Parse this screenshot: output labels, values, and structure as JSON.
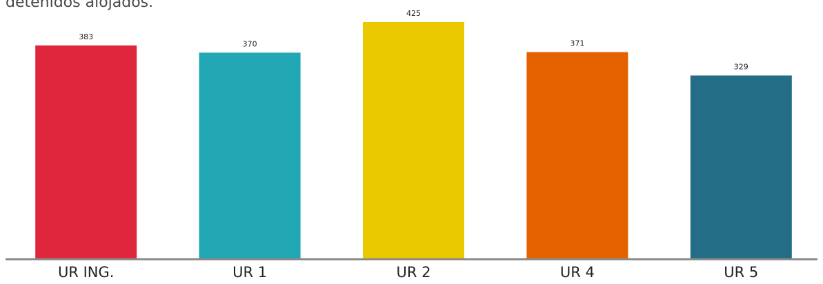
{
  "caption": "detenidos alojados.",
  "chart_data": {
    "type": "bar",
    "categories": [
      "UR ING.",
      "UR 1",
      "UR 2",
      "UR 4",
      "UR 5"
    ],
    "values": [
      383,
      370,
      425,
      371,
      329
    ],
    "colors": [
      "#e0263c",
      "#22a7b5",
      "#eac900",
      "#e56100",
      "#236d86"
    ],
    "data_labels": [
      "383",
      "370",
      "425",
      "371",
      "329"
    ],
    "title": "",
    "xlabel": "",
    "ylabel": "",
    "ylim": [
      0,
      425
    ],
    "grid": false,
    "legend": "none",
    "axis_color": "#8a8a8a"
  }
}
